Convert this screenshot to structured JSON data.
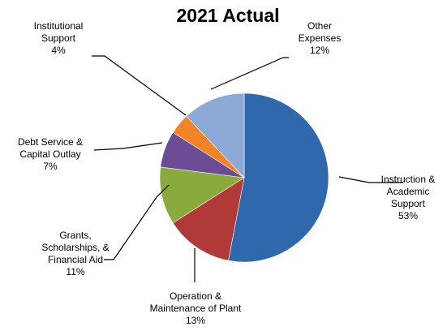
{
  "chart_data": {
    "type": "pie",
    "title": "2021 Actual",
    "slices": [
      {
        "label_lines": [
          "Instruction &",
          "Academic",
          "Support",
          "53%"
        ],
        "value": 53,
        "color": "#2f68ad"
      },
      {
        "label_lines": [
          "Operation &",
          "Maintenance of Plant",
          "13%"
        ],
        "value": 13,
        "color": "#b03a37"
      },
      {
        "label_lines": [
          "Grants,",
          "Scholarships, &",
          "Financial Aid",
          "11%"
        ],
        "value": 11,
        "color": "#8aab3c"
      },
      {
        "label_lines": [
          "Debt Service &",
          "Capital Outlay",
          "7%"
        ],
        "value": 7,
        "color": "#6c4c94"
      },
      {
        "label_lines": [
          "Institutional",
          "Support",
          "4%"
        ],
        "value": 4,
        "color": "#f28327"
      },
      {
        "label_lines": [
          "Other",
          "Expenses",
          "12%"
        ],
        "value": 12,
        "color": "#8da9d5"
      }
    ]
  }
}
